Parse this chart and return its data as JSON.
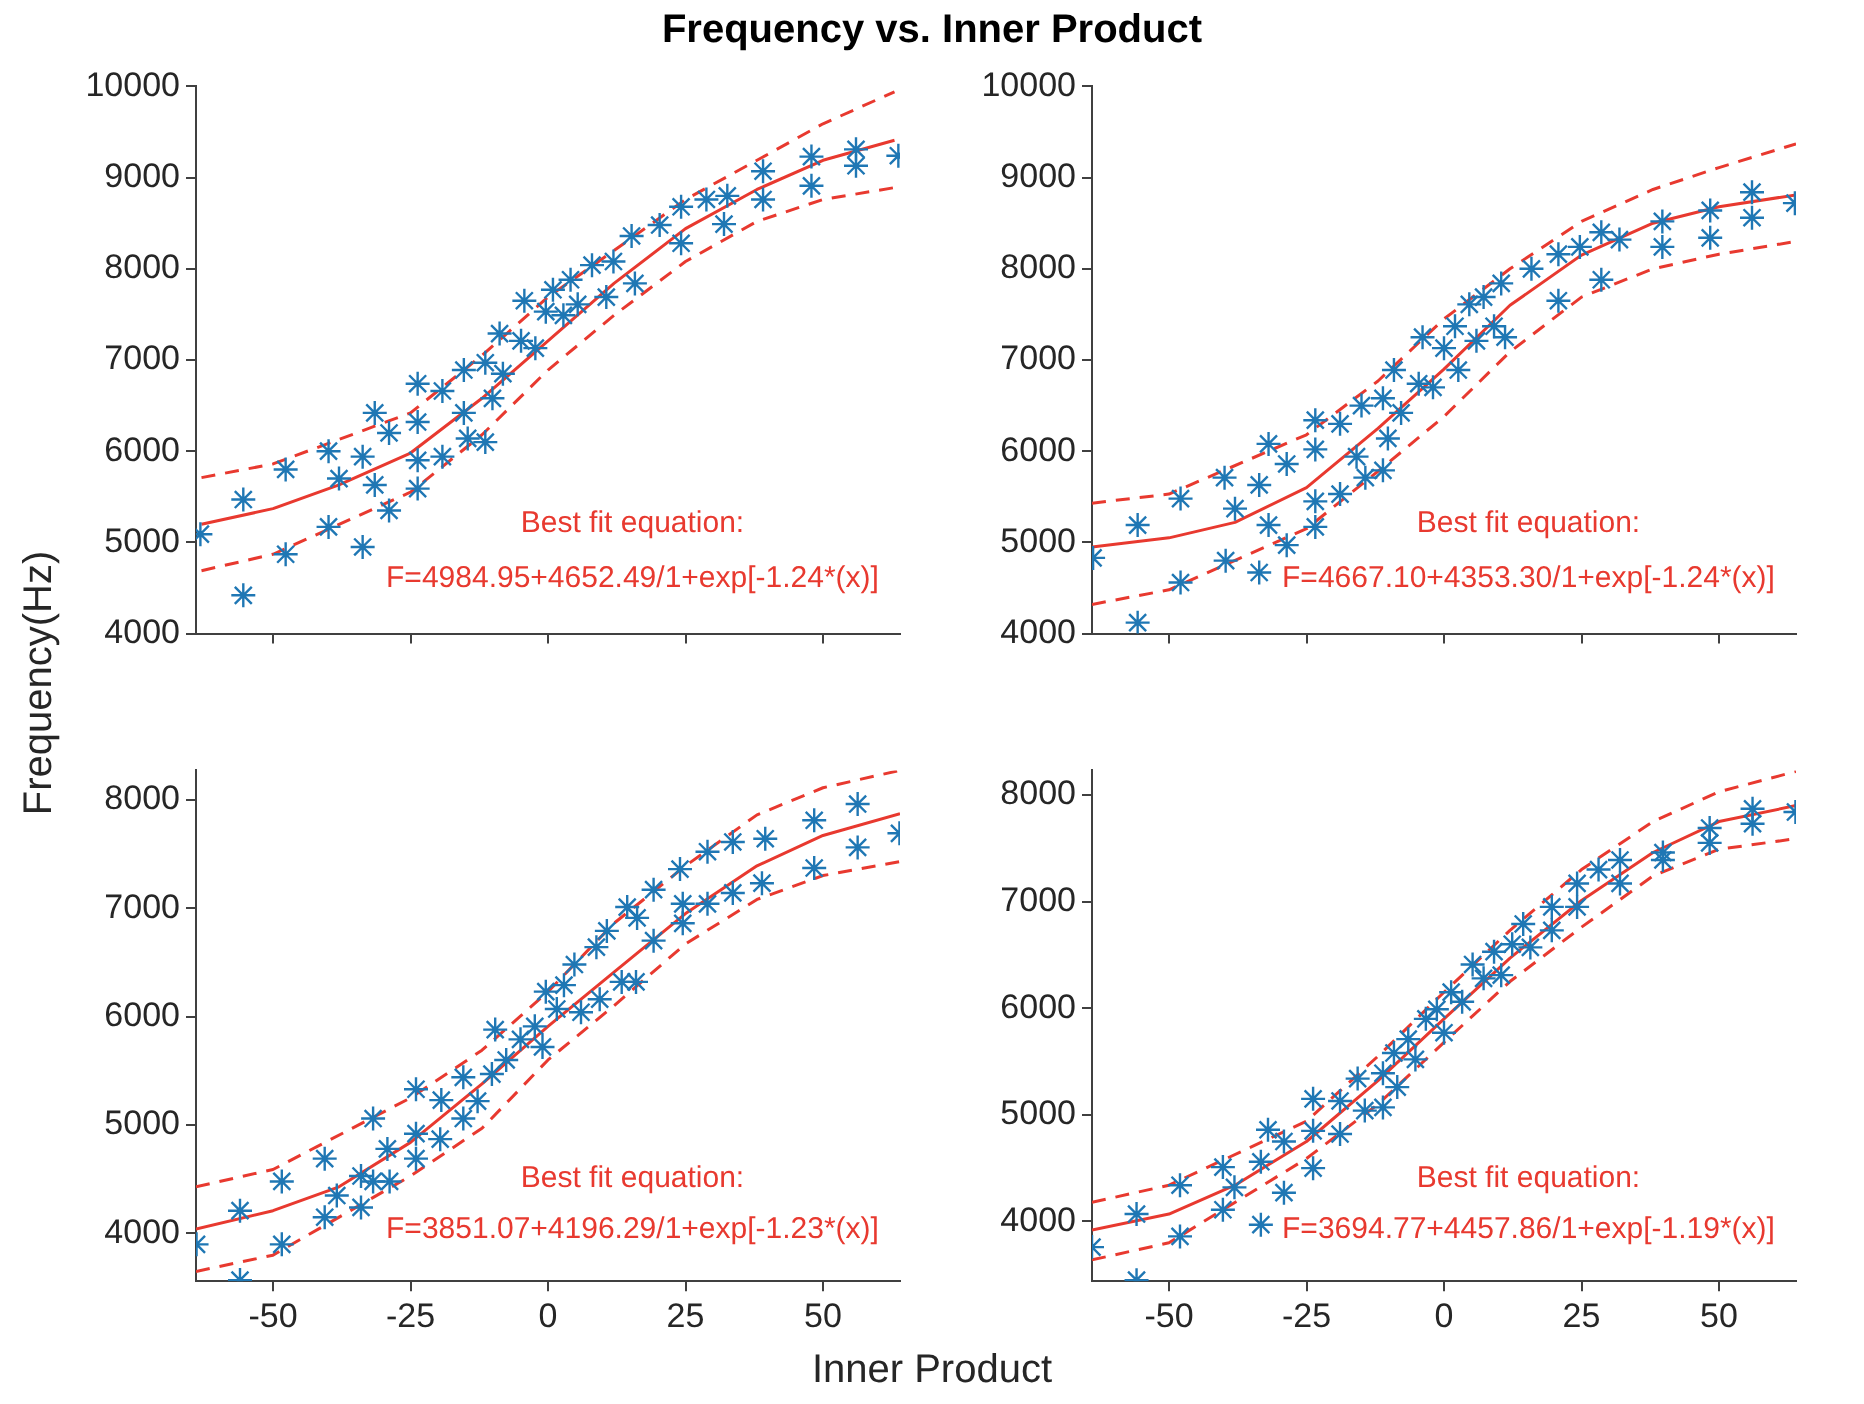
{
  "chart_data": [
    {
      "type": "scatter",
      "title": "Frequency vs. Inner Product",
      "ylabel": "Frequency(Hz)",
      "xlabel": "Inner Product",
      "xlim": [
        -64,
        64
      ],
      "xticks": [
        -50,
        -25,
        0,
        25,
        50
      ],
      "ylim": [
        4000,
        10000
      ],
      "yticks": [
        4000,
        5000,
        6000,
        7000,
        8000,
        9000,
        10000
      ],
      "tick_labels": "y",
      "annotations": [
        "Best fit equation:",
        "F=4984.95+4652.49/1+exp[-1.24*(x)]"
      ],
      "series": [
        {
          "type": "scatter",
          "color": "#1f77b4",
          "marker": "cross",
          "x": [
            -63.2,
            -55.4,
            -55.4,
            -47.7,
            -47.7,
            -39.9,
            -39.9,
            -38,
            -33.7,
            -33.7,
            -31.5,
            -31.5,
            -28.9,
            -28.9,
            -23.7,
            -23.7,
            -23.7,
            -23.7,
            -19.2,
            -19.2,
            -15.3,
            -15.3,
            -14.6,
            -11.4,
            -11.4,
            -10.1,
            -8.8,
            -8.2,
            -4.9,
            -4.3,
            -2.3,
            -0.4,
            0.9,
            2.8,
            4.1,
            5.4,
            8,
            10.6,
            11.9,
            15.8,
            15.2,
            20.3,
            24.2,
            24.2,
            28.8,
            32,
            32.6,
            39.1,
            39.1,
            47.9,
            47.9,
            56,
            56,
            63.7
          ],
          "values": [
            5090,
            5470,
            4420,
            5800,
            4870,
            6000,
            5170,
            5700,
            5940,
            4950,
            6420,
            5630,
            6200,
            5350,
            6740,
            6320,
            5900,
            5590,
            5940,
            6660,
            6420,
            6890,
            6140,
            6100,
            6970,
            6580,
            7290,
            6850,
            7210,
            7650,
            7130,
            7530,
            7770,
            7490,
            7880,
            7610,
            8040,
            7690,
            8080,
            7840,
            8360,
            8480,
            8280,
            8680,
            8760,
            8490,
            8800,
            9070,
            8760,
            9230,
            8910,
            9310,
            9130,
            9240
          ]
        },
        {
          "type": "line",
          "color": "#e8392f",
          "marker": "none",
          "line_style": "solid",
          "x": [
            -63,
            -50,
            -38,
            -25,
            -12,
            0,
            12,
            25,
            38,
            50,
            63
          ],
          "values": [
            5200,
            5370,
            5630,
            5980,
            6580,
            7210,
            7840,
            8440,
            8870,
            9190,
            9410
          ]
        },
        {
          "type": "line",
          "color": "#e8392f",
          "marker": "none",
          "line_style": "dashed",
          "x": [
            -63,
            -50,
            -25,
            -12,
            0,
            12,
            25,
            38,
            50,
            63
          ],
          "values": [
            5710,
            5860,
            6420,
            7050,
            7690,
            8200,
            8760,
            9190,
            9590,
            9940
          ]
        },
        {
          "type": "line",
          "color": "#e8392f",
          "marker": "none",
          "line_style": "dashed",
          "x": [
            -63,
            -50,
            -25,
            -12,
            0,
            12,
            25,
            38,
            50,
            63
          ],
          "values": [
            4690,
            4870,
            5550,
            6180,
            6890,
            7490,
            8080,
            8520,
            8760,
            8890
          ]
        }
      ]
    },
    {
      "type": "scatter",
      "xlim": [
        -64,
        64
      ],
      "xticks": [
        -50,
        -25,
        0,
        25,
        50
      ],
      "ylim": [
        4000,
        10000
      ],
      "yticks": [
        4000,
        5000,
        6000,
        7000,
        8000,
        9000,
        10000
      ],
      "tick_labels": "y",
      "annotations": [
        "Best fit equation:",
        "F=4667.10+4353.30/1+exp[-1.24*(x)]"
      ],
      "series": [
        {
          "type": "scatter",
          "color": "#1f77b4",
          "marker": "cross",
          "x": [
            -63.8,
            -55.7,
            -55.7,
            -47.9,
            -47.9,
            -39.9,
            -39.7,
            -38,
            -33.6,
            -33.6,
            -31.9,
            -31.9,
            -28.6,
            -28.6,
            -23.4,
            -23.4,
            -23.4,
            -23.4,
            -18.9,
            -18.9,
            -15.9,
            -15,
            -14.3,
            -11.1,
            -11.1,
            -10.2,
            -9.1,
            -7.8,
            -4.6,
            -3.9,
            -2,
            0,
            2,
            2.6,
            4.6,
            5.9,
            7.2,
            9.1,
            10.4,
            11.1,
            15.9,
            20.8,
            20.8,
            24.7,
            28.6,
            28.6,
            31.9,
            39.7,
            39.7,
            48.4,
            48.4,
            56,
            56,
            63.8
          ],
          "values": [
            4830,
            5190,
            4120,
            5480,
            4560,
            5710,
            4800,
            5370,
            5630,
            4670,
            6080,
            5190,
            5860,
            4970,
            6340,
            6020,
            5450,
            5170,
            5530,
            6300,
            5940,
            6500,
            5710,
            5790,
            6580,
            6140,
            6890,
            6420,
            6740,
            7250,
            6700,
            7130,
            7370,
            6890,
            7610,
            7210,
            7690,
            7370,
            7840,
            7250,
            8000,
            8160,
            7650,
            8240,
            8400,
            7880,
            8320,
            8520,
            8240,
            8640,
            8340,
            8840,
            8560,
            8720
          ]
        },
        {
          "type": "line",
          "color": "#e8392f",
          "marker": "none",
          "line_style": "solid",
          "x": [
            -64,
            -50,
            -38,
            -25,
            -12,
            0,
            12,
            25,
            38,
            50,
            64
          ],
          "values": [
            4950,
            5050,
            5220,
            5600,
            6250,
            6900,
            7600,
            8150,
            8500,
            8680,
            8810
          ]
        },
        {
          "type": "line",
          "color": "#e8392f",
          "marker": "none",
          "line_style": "dashed",
          "x": [
            -64,
            -50,
            -25,
            -12,
            0,
            12,
            25,
            38,
            50,
            64
          ],
          "values": [
            5430,
            5530,
            6180,
            6770,
            7450,
            8000,
            8520,
            8870,
            9110,
            9370
          ]
        },
        {
          "type": "line",
          "color": "#e8392f",
          "marker": "none",
          "line_style": "dashed",
          "x": [
            -64,
            -50,
            -25,
            -12,
            0,
            12,
            25,
            38,
            50,
            64
          ],
          "values": [
            4320,
            4480,
            5150,
            5780,
            6380,
            7090,
            7690,
            8000,
            8160,
            8300
          ]
        }
      ]
    },
    {
      "type": "scatter",
      "xlim": [
        -64,
        64
      ],
      "xticks": [
        -50,
        -25,
        0,
        25,
        50
      ],
      "ylim": [
        3560,
        8270
      ],
      "yticks": [
        4000,
        5000,
        6000,
        7000,
        8000
      ],
      "annotations": [
        "Best fit equation:",
        "F=3851.07+4196.29/1+exp[-1.23*(x)]"
      ],
      "series": [
        {
          "type": "scatter",
          "color": "#1f77b4",
          "marker": "cross",
          "x": [
            -63.9,
            -56,
            -56,
            -48.4,
            -48.4,
            -40.6,
            -40.6,
            -38.4,
            -34,
            -34,
            -31.8,
            -31.8,
            -29.2,
            -28.8,
            -24,
            -24,
            -24,
            -19.6,
            -19.4,
            -15.4,
            -15.4,
            -12.8,
            -10.2,
            -9.6,
            -7.6,
            -5,
            -2.4,
            -1,
            -0.4,
            1.6,
            2.9,
            4.8,
            6,
            8.8,
            9.4,
            10.7,
            13.4,
            14.4,
            16,
            16.2,
            19.2,
            19.2,
            24.5,
            24.5,
            24,
            29,
            29,
            33.6,
            33.6,
            39.5,
            38.9,
            48.4,
            48.4,
            56.3,
            56.3,
            63.9
          ],
          "values": [
            3900,
            4210,
            3570,
            4480,
            3900,
            4690,
            4150,
            4350,
            4530,
            4240,
            5060,
            4480,
            4780,
            4480,
            5330,
            4920,
            4690,
            4870,
            5230,
            5440,
            5060,
            5220,
            5470,
            5880,
            5600,
            5790,
            5910,
            5720,
            6230,
            6070,
            6290,
            6480,
            6040,
            6640,
            6160,
            6790,
            6320,
            7010,
            6320,
            6910,
            7170,
            6700,
            7040,
            6860,
            7360,
            7520,
            7040,
            7610,
            7140,
            7640,
            7230,
            7810,
            7370,
            7960,
            7560,
            7690
          ]
        },
        {
          "type": "line",
          "color": "#e8392f",
          "marker": "none",
          "line_style": "solid",
          "x": [
            -64,
            -50,
            -38,
            -25,
            -12,
            0,
            12,
            25,
            38,
            50,
            64
          ],
          "values": [
            4040,
            4210,
            4430,
            4840,
            5380,
            5910,
            6410,
            6950,
            7390,
            7670,
            7870
          ]
        },
        {
          "type": "line",
          "color": "#e8392f",
          "marker": "none",
          "line_style": "dashed",
          "x": [
            -64,
            -50,
            -25,
            -12,
            0,
            12,
            25,
            38,
            50,
            64
          ],
          "values": [
            4430,
            4590,
            5250,
            5690,
            6230,
            6860,
            7390,
            7860,
            8110,
            8270
          ]
        },
        {
          "type": "line",
          "color": "#e8392f",
          "marker": "none",
          "line_style": "dashed",
          "x": [
            -64,
            -50,
            -25,
            -12,
            0,
            12,
            25,
            38,
            50,
            64
          ],
          "values": [
            3650,
            3800,
            4530,
            4970,
            5600,
            6100,
            6670,
            7080,
            7300,
            7430
          ]
        }
      ]
    },
    {
      "type": "scatter",
      "xlim": [
        -64,
        64
      ],
      "xticks": [
        -50,
        -25,
        0,
        25,
        50
      ],
      "ylim": [
        3440,
        8230
      ],
      "yticks": [
        4000,
        5000,
        6000,
        7000,
        8000
      ],
      "annotations": [
        "Best fit equation:",
        "F=3694.77+4457.86/1+exp[-1.19*(x)]"
      ],
      "series": [
        {
          "type": "scatter",
          "color": "#1f77b4",
          "marker": "cross",
          "x": [
            -64,
            -55.9,
            -55.9,
            -48,
            -48,
            -40.2,
            -40.2,
            -38.1,
            -33.3,
            -33.3,
            -32,
            -29.1,
            -29.1,
            -23.8,
            -23.8,
            -23.8,
            -18.9,
            -18.9,
            -15.7,
            -14.4,
            -11.1,
            -11.1,
            -9.1,
            -8.5,
            -6.5,
            -5.2,
            -3.3,
            -1.3,
            0,
            1.3,
            3.3,
            5.2,
            7.2,
            9.1,
            10.4,
            12.4,
            14.4,
            15.7,
            19.6,
            19.6,
            24.2,
            24.2,
            28.1,
            32,
            32,
            39.8,
            39.8,
            48.3,
            48.3,
            56.1,
            56.1,
            63.9
          ],
          "values": [
            3760,
            4070,
            3450,
            4340,
            3860,
            4510,
            4110,
            4320,
            4560,
            3970,
            4860,
            4750,
            4270,
            5150,
            4850,
            4500,
            4820,
            5130,
            5340,
            5040,
            5070,
            5390,
            5580,
            5260,
            5710,
            5520,
            5900,
            5990,
            5770,
            6150,
            6060,
            6410,
            6280,
            6530,
            6310,
            6600,
            6790,
            6570,
            6950,
            6730,
            7170,
            6950,
            7300,
            7390,
            7170,
            7460,
            7390,
            7690,
            7550,
            7870,
            7730,
            7840
          ]
        },
        {
          "type": "line",
          "color": "#e8392f",
          "marker": "none",
          "line_style": "solid",
          "x": [
            -64,
            -50,
            -38,
            -25,
            -12,
            0,
            12,
            25,
            38,
            50,
            64
          ],
          "values": [
            3920,
            4070,
            4340,
            4750,
            5320,
            5900,
            6470,
            7010,
            7460,
            7750,
            7900
          ]
        },
        {
          "type": "line",
          "color": "#e8392f",
          "marker": "none",
          "line_style": "dashed",
          "x": [
            -64,
            -50,
            -25,
            -12,
            0,
            12,
            25,
            38,
            50,
            64
          ],
          "values": [
            4180,
            4340,
            4940,
            5550,
            6150,
            6730,
            7300,
            7750,
            8030,
            8220
          ]
        },
        {
          "type": "line",
          "color": "#e8392f",
          "marker": "none",
          "line_style": "dashed",
          "x": [
            -64,
            -50,
            -25,
            -12,
            0,
            12,
            25,
            38,
            50,
            64
          ],
          "values": [
            3640,
            3800,
            4590,
            5100,
            5680,
            6250,
            6760,
            7240,
            7490,
            7590
          ]
        }
      ]
    }
  ]
}
